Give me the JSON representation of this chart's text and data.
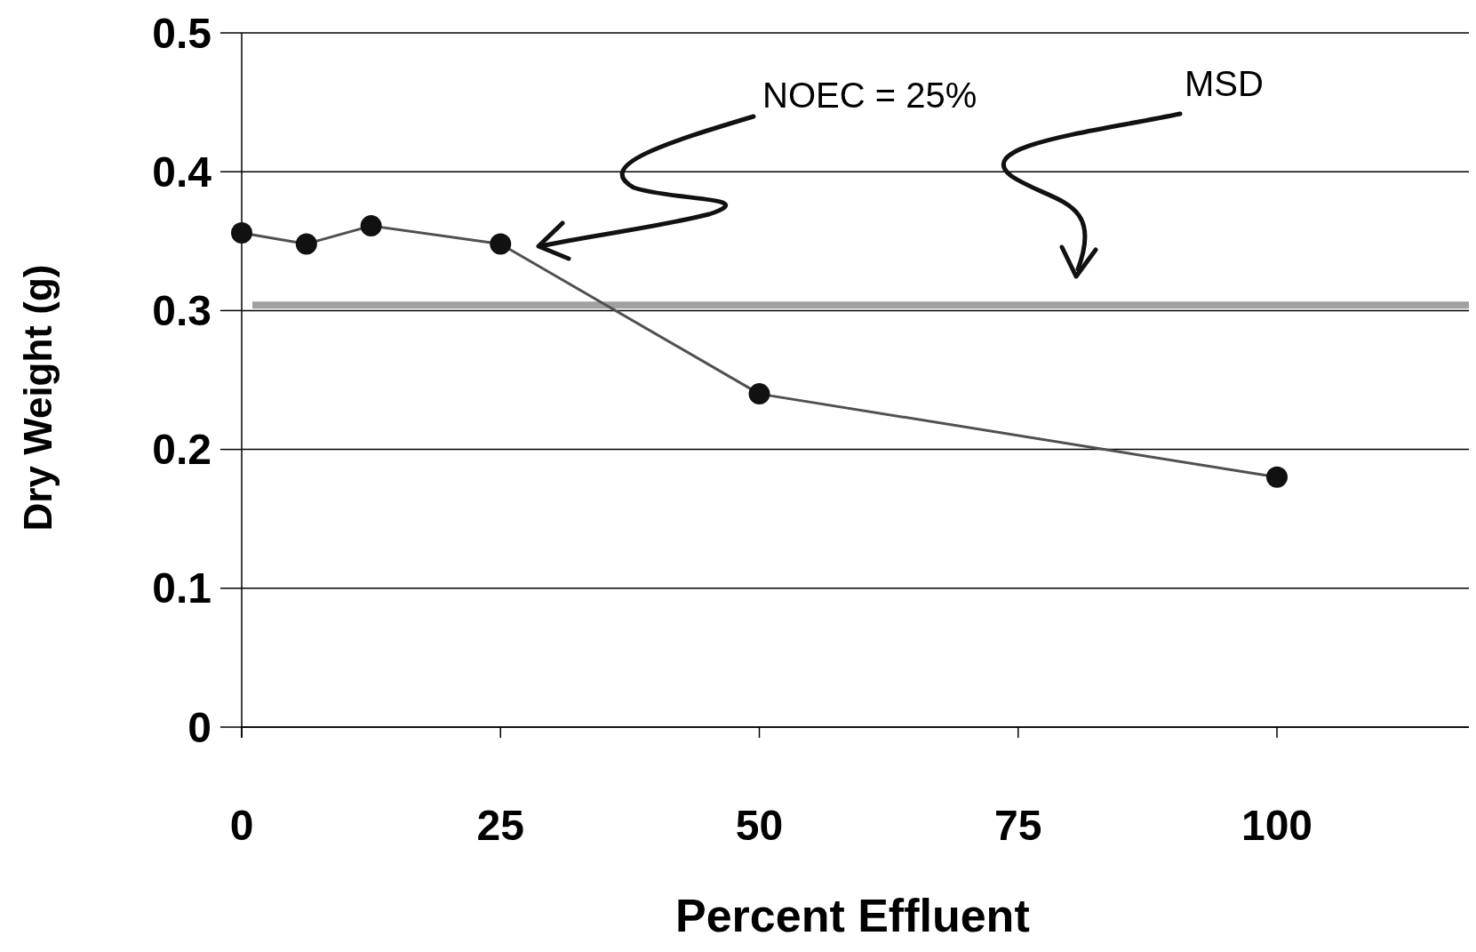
{
  "chart_data": {
    "type": "line",
    "xlabel": "Percent Effluent",
    "ylabel": "Dry Weight (g)",
    "x": [
      0,
      6.25,
      12.5,
      25,
      50,
      100
    ],
    "series": [
      {
        "color": "#505050",
        "values": [
          0.356,
          0.348,
          0.361,
          0.348,
          0.24,
          0.18
        ]
      }
    ],
    "xlim": [
      0,
      118
    ],
    "xticks": [
      0,
      25,
      50,
      75,
      100
    ],
    "ylim": [
      0,
      0.5
    ],
    "yticks": [
      0,
      0.1,
      0.2,
      0.3,
      0.4,
      0.5
    ],
    "grid": "y",
    "marker": "circle",
    "line_style": "solid",
    "ref_lines": [
      {
        "axis": "y",
        "value": 0.304,
        "color": "#a0a0a0"
      }
    ],
    "annotations": [
      "NOEC = 25%",
      "MSD"
    ]
  }
}
